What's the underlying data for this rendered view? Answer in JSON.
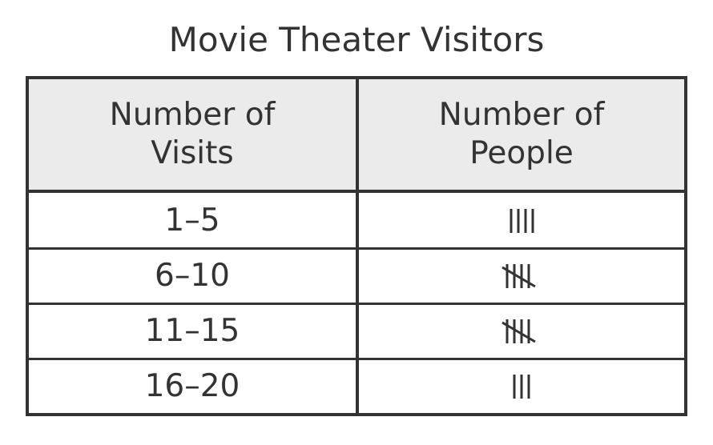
{
  "chart_data": {
    "type": "table",
    "title": "Movie Theater Visitors",
    "columns": [
      "Number of Visits",
      "Number of People"
    ],
    "header_lines": [
      [
        "Number of",
        "Visits"
      ],
      [
        "Number of",
        "People"
      ]
    ],
    "rows": [
      {
        "visits": "1–5",
        "people": 4
      },
      {
        "visits": "6–10",
        "people": 5
      },
      {
        "visits": "11–15",
        "people": 5
      },
      {
        "visits": "16–20",
        "people": 3
      }
    ],
    "tally_icon": "tally-marks-icon"
  }
}
